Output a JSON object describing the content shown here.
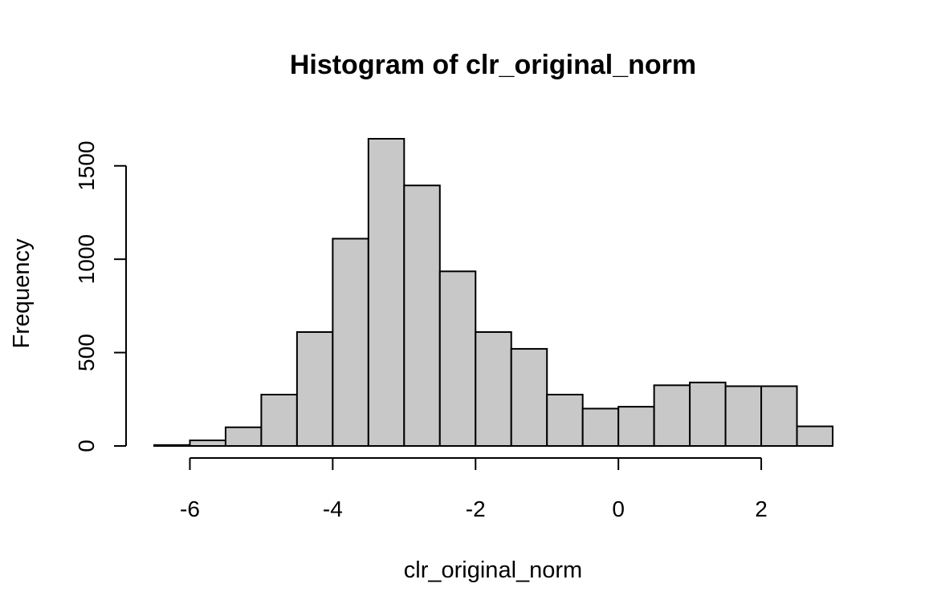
{
  "chart_data": {
    "type": "bar",
    "subtype": "histogram",
    "title": "Histogram of clr_original_norm",
    "xlabel": "clr_original_norm",
    "ylabel": "Frequency",
    "bin_edges": [
      -6.5,
      -6.0,
      -5.5,
      -5.0,
      -4.5,
      -4.0,
      -3.5,
      -3.0,
      -2.5,
      -2.0,
      -1.5,
      -1.0,
      -0.5,
      0.0,
      0.5,
      1.0,
      1.5,
      2.0,
      2.5,
      3.0
    ],
    "values": [
      5,
      30,
      100,
      275,
      610,
      1110,
      1645,
      1395,
      935,
      610,
      520,
      275,
      200,
      210,
      325,
      340,
      320,
      320,
      105
    ],
    "xlim": [
      -6.5,
      3.0
    ],
    "ylim": [
      0,
      1645
    ],
    "x_ticks": [
      -6,
      -4,
      -2,
      0,
      2
    ],
    "x_tick_labels": [
      "-6",
      "-4",
      "-2",
      "0",
      "2"
    ],
    "y_ticks": [
      0,
      500,
      1000,
      1500
    ],
    "y_tick_labels": [
      "0",
      "500",
      "1000",
      "1500"
    ],
    "bar_color": "#c8c8c8",
    "edge_color": "#000000",
    "grid": false,
    "legend": "none"
  }
}
